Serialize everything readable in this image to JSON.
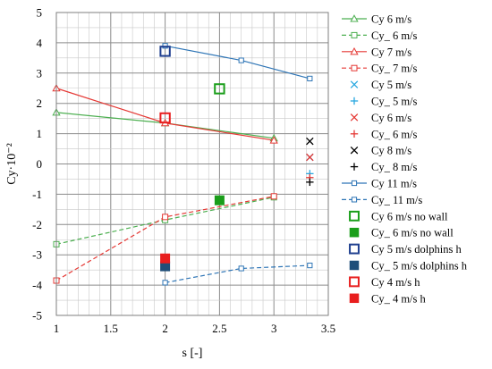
{
  "chart_data": {
    "type": "line",
    "xlabel": "s [-]",
    "ylabel": "Cy·10⁻²",
    "xlim": [
      1,
      3.5
    ],
    "ylim": [
      -5,
      5
    ],
    "x_ticks": [
      "1",
      "1.5",
      "2",
      "2.5",
      "3",
      "3.5"
    ],
    "y_ticks": [
      "-5",
      "-4",
      "-3",
      "-2",
      "-1",
      "0",
      "1",
      "2",
      "3",
      "4",
      "5"
    ],
    "grid": true,
    "legend": "right",
    "series": [
      {
        "name": "Cy 6 m/s",
        "color": "#4caf50",
        "marker": "triangle-open",
        "line": "solid",
        "points": [
          [
            1,
            1.7
          ],
          [
            2,
            1.35
          ],
          [
            3,
            0.85
          ]
        ]
      },
      {
        "name": "Cy_ 6 m/s",
        "color": "#4caf50",
        "marker": "square-open",
        "line": "dashed",
        "points": [
          [
            1,
            -2.65
          ],
          [
            2,
            -1.85
          ],
          [
            3,
            -1.1
          ]
        ]
      },
      {
        "name": "Cy 7 m/s",
        "color": "#e53935",
        "marker": "triangle-open",
        "line": "solid",
        "points": [
          [
            1,
            2.5
          ],
          [
            2,
            1.35
          ],
          [
            3,
            0.78
          ]
        ]
      },
      {
        "name": "Cy_ 7 m/s",
        "color": "#e53935",
        "marker": "square-open",
        "line": "dashed",
        "points": [
          [
            1,
            -3.85
          ],
          [
            2,
            -1.75
          ],
          [
            3,
            -1.07
          ]
        ]
      },
      {
        "name": "Cy 5 m/s",
        "color": "#29a8e0",
        "marker": "x",
        "line": "none",
        "points": [
          [
            3.33,
            0.22
          ]
        ]
      },
      {
        "name": "Cy_ 5 m/s",
        "color": "#29a8e0",
        "marker": "plus",
        "line": "none",
        "points": [
          [
            3.33,
            -0.32
          ]
        ]
      },
      {
        "name": "Cy 6 m/s",
        "color": "#e53935",
        "marker": "x",
        "line": "none",
        "points": [
          [
            3.33,
            0.22
          ]
        ]
      },
      {
        "name": "Cy_ 6 m/s",
        "color": "#e53935",
        "marker": "plus",
        "line": "none",
        "points": [
          [
            3.33,
            -0.45
          ]
        ]
      },
      {
        "name": "Cy 8 m/s",
        "color": "#000000",
        "marker": "x",
        "line": "none",
        "points": [
          [
            3.33,
            0.75
          ]
        ]
      },
      {
        "name": "Cy_ 8 m/s",
        "color": "#000000",
        "marker": "plus",
        "line": "none",
        "points": [
          [
            3.33,
            -0.6
          ]
        ]
      },
      {
        "name": "Cy 11 m/s",
        "color": "#2e75b6",
        "marker": "square-open-small",
        "line": "solid",
        "points": [
          [
            2,
            3.9
          ],
          [
            2.7,
            3.42
          ],
          [
            3.33,
            2.82
          ]
        ]
      },
      {
        "name": "Cy_ 11 m/s",
        "color": "#2e75b6",
        "marker": "square-open-small",
        "line": "dashed",
        "points": [
          [
            2,
            -3.92
          ],
          [
            2.7,
            -3.45
          ],
          [
            3.33,
            -3.35
          ]
        ]
      },
      {
        "name": "Cy 6 m/s no wall",
        "color": "#1a9e1a",
        "marker": "square-open-big",
        "line": "none",
        "points": [
          [
            2.5,
            2.48
          ]
        ]
      },
      {
        "name": "Cy_ 6 m/s no wall",
        "color": "#1a9e1a",
        "marker": "square-filled",
        "line": "none",
        "points": [
          [
            2.5,
            -1.2
          ]
        ]
      },
      {
        "name": "Cy 5 m/s dolphins h",
        "color": "#1f3f8f",
        "marker": "square-open-big",
        "line": "none",
        "points": [
          [
            2,
            3.72
          ]
        ]
      },
      {
        "name": "Cy_ 5 m/s dolphins h",
        "color": "#1f4e79",
        "marker": "square-filled",
        "line": "none",
        "points": [
          [
            2,
            -3.38
          ]
        ]
      },
      {
        "name": "Cy 4 m/s h",
        "color": "#e81e1e",
        "marker": "square-open-big",
        "line": "none",
        "points": [
          [
            2,
            1.52
          ]
        ]
      },
      {
        "name": "Cy_ 4 m/s h",
        "color": "#e81e1e",
        "marker": "square-filled",
        "line": "none",
        "points": [
          [
            2,
            -3.12
          ]
        ]
      }
    ]
  }
}
